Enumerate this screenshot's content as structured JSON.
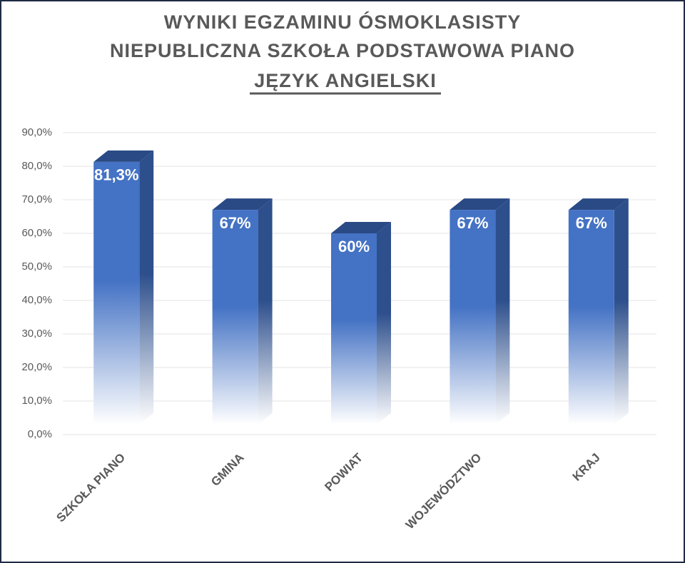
{
  "chart_data": {
    "type": "bar3d",
    "title": "WYNIKI EGZAMINU ÓSMOKLASISTY",
    "subtitle": "NIEPUBLICZNA SZKOŁA PODSTAWOWA PIANO",
    "subject": "JĘZYK ANGIELSKI",
    "categories": [
      "SZKOŁA PIANO",
      "GMINA",
      "POWIAT",
      "WOJEWÓDZTWO",
      "KRAJ"
    ],
    "values": [
      81.3,
      67,
      60,
      67,
      67
    ],
    "value_labels": [
      "81,3%",
      "67%",
      "60%",
      "67%",
      "67%"
    ],
    "color": "#4472c4",
    "ylim": [
      0,
      90
    ],
    "yticks": [
      {
        "value": 0,
        "label": "0,0%"
      },
      {
        "value": 10,
        "label": "10,0%"
      },
      {
        "value": 20,
        "label": "20,0%"
      },
      {
        "value": 30,
        "label": "30,0%"
      },
      {
        "value": 40,
        "label": "40,0%"
      },
      {
        "value": 50,
        "label": "50,0%"
      },
      {
        "value": 60,
        "label": "60,0%"
      },
      {
        "value": 70,
        "label": "70,0%"
      },
      {
        "value": 80,
        "label": "80,0%"
      },
      {
        "value": 90,
        "label": "90,0%"
      }
    ],
    "grid": true
  }
}
